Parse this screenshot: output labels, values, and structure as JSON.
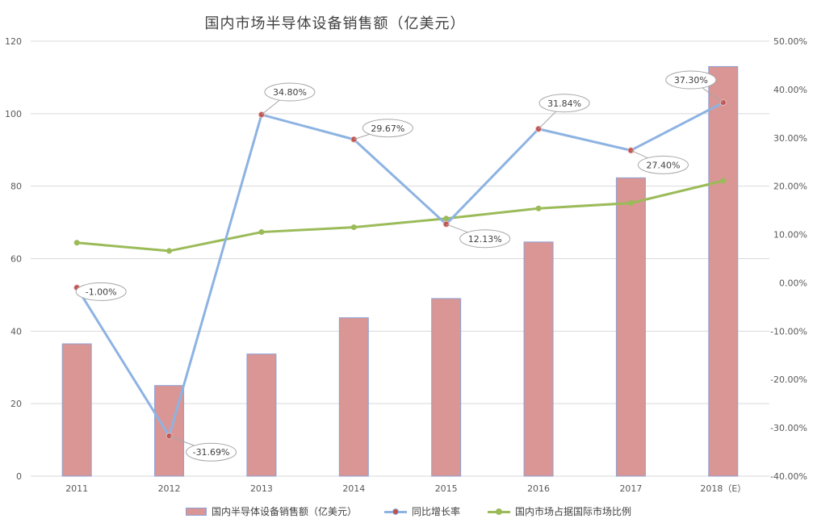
{
  "chart_data": {
    "type": "bar",
    "title": "国内市场半导体设备销售额（亿美元）",
    "categories": [
      "2011",
      "2012",
      "2013",
      "2014",
      "2015",
      "2016",
      "2017",
      "2018（E）"
    ],
    "series": [
      {
        "name": "国内半导体设备销售额（亿美元）",
        "type": "bar",
        "axis": "left",
        "color": "#d99694",
        "values": [
          36.5,
          25.0,
          33.7,
          43.7,
          49.0,
          64.6,
          82.3,
          113.0
        ]
      },
      {
        "name": "同比增长率",
        "type": "line",
        "axis": "right",
        "color": "#8db3e2",
        "marker_color": "#c0504d",
        "values": [
          -1.0,
          -31.69,
          34.8,
          29.67,
          12.13,
          31.84,
          27.4,
          37.3
        ],
        "data_labels": [
          "-1.00%",
          "-31.69%",
          "34.80%",
          "29.67%",
          "12.13%",
          "31.84%",
          "27.40%",
          "37.30%"
        ]
      },
      {
        "name": "国内市场占据国际市场比例",
        "type": "line",
        "axis": "right",
        "color": "#9bbb59",
        "values": [
          8.3,
          6.6,
          10.5,
          11.5,
          13.3,
          15.4,
          16.5,
          21.1
        ]
      }
    ],
    "y_left": {
      "min": 0,
      "max": 120,
      "ticks": [
        "0",
        "20",
        "40",
        "60",
        "80",
        "100",
        "120"
      ]
    },
    "y_right": {
      "min": -40,
      "max": 50,
      "ticks": [
        "-40.00%",
        "-30.00%",
        "-20.00%",
        "-10.00%",
        "0.00%",
        "10.00%",
        "20.00%",
        "30.00%",
        "40.00%",
        "50.00%"
      ]
    },
    "grid": true,
    "legend_position": "bottom"
  }
}
